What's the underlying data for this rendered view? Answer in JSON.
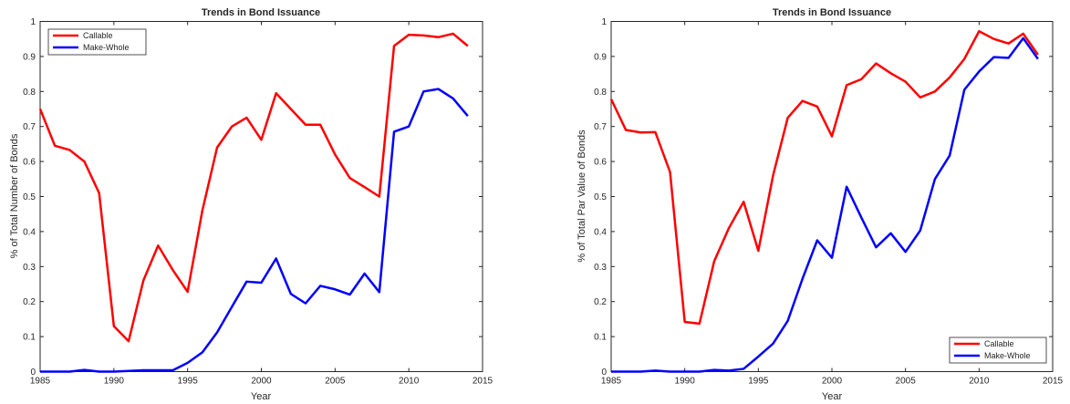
{
  "figure": {
    "background": "#ffffff"
  },
  "chart_data": [
    {
      "type": "line",
      "title": "Trends in Bond Issuance",
      "xlabel": "Year",
      "ylabel": "% of Total Number of Bonds",
      "xlim": [
        1985,
        2015
      ],
      "ylim": [
        0,
        1
      ],
      "xticks": [
        1985,
        1990,
        1995,
        2000,
        2005,
        2010,
        2015
      ],
      "yticks": [
        0,
        0.1,
        0.2,
        0.3,
        0.4,
        0.5,
        0.6,
        0.7,
        0.8,
        0.9,
        1
      ],
      "xtick_labels": [
        "1985",
        "1990",
        "1995",
        "2000",
        "2005",
        "2010",
        "2015"
      ],
      "ytick_labels": [
        "0",
        "0.1",
        "0.2",
        "0.3",
        "0.4",
        "0.5",
        "0.6",
        "0.7",
        "0.8",
        "0.9",
        "1"
      ],
      "grid": false,
      "legend_position": "top-left",
      "x": [
        1985,
        1986,
        1987,
        1988,
        1989,
        1990,
        1991,
        1992,
        1993,
        1994,
        1995,
        1996,
        1997,
        1998,
        1999,
        2000,
        2001,
        2002,
        2003,
        2004,
        2005,
        2006,
        2007,
        2008,
        2009,
        2010,
        2011,
        2012,
        2013,
        2014
      ],
      "series": [
        {
          "name": "Callable",
          "color": "#ff0000",
          "values": [
            0.75,
            0.645,
            0.633,
            0.6,
            0.51,
            0.13,
            0.087,
            0.26,
            0.36,
            0.29,
            0.228,
            0.46,
            0.64,
            0.7,
            0.725,
            0.662,
            0.795,
            0.75,
            0.705,
            0.705,
            0.62,
            0.553,
            0.527,
            0.5,
            0.93,
            0.962,
            0.96,
            0.955,
            0.965,
            0.93
          ]
        },
        {
          "name": "Make-Whole",
          "color": "#0000ff",
          "values": [
            0.0,
            0.0,
            0.0,
            0.005,
            0.0,
            0.0,
            0.002,
            0.004,
            0.004,
            0.004,
            0.025,
            0.055,
            0.112,
            0.185,
            0.257,
            0.254,
            0.323,
            0.222,
            0.195,
            0.245,
            0.235,
            0.22,
            0.28,
            0.227,
            0.685,
            0.7,
            0.8,
            0.807,
            0.78,
            0.73
          ]
        }
      ]
    },
    {
      "type": "line",
      "title": "Trends in Bond Issuance",
      "xlabel": "Year",
      "ylabel": "% of Total Par Value of Bonds",
      "xlim": [
        1985,
        2015
      ],
      "ylim": [
        0,
        1
      ],
      "xticks": [
        1985,
        1990,
        1995,
        2000,
        2005,
        2010,
        2015
      ],
      "yticks": [
        0,
        0.1,
        0.2,
        0.3,
        0.4,
        0.5,
        0.6,
        0.7,
        0.8,
        0.9,
        1
      ],
      "xtick_labels": [
        "1985",
        "1990",
        "1995",
        "2000",
        "2005",
        "2010",
        "2015"
      ],
      "ytick_labels": [
        "0",
        "0.1",
        "0.2",
        "0.3",
        "0.4",
        "0.5",
        "0.6",
        "0.7",
        "0.8",
        "0.9",
        "1"
      ],
      "grid": false,
      "legend_position": "bottom-right",
      "x": [
        1985,
        1986,
        1987,
        1988,
        1989,
        1990,
        1991,
        1992,
        1993,
        1994,
        1995,
        1996,
        1997,
        1998,
        1999,
        2000,
        2001,
        2002,
        2003,
        2004,
        2005,
        2006,
        2007,
        2008,
        2009,
        2010,
        2011,
        2012,
        2013,
        2014
      ],
      "series": [
        {
          "name": "Callable",
          "color": "#ff0000",
          "values": [
            0.778,
            0.69,
            0.683,
            0.684,
            0.57,
            0.142,
            0.137,
            0.315,
            0.41,
            0.485,
            0.345,
            0.56,
            0.725,
            0.773,
            0.757,
            0.672,
            0.818,
            0.835,
            0.88,
            0.852,
            0.828,
            0.783,
            0.8,
            0.84,
            0.893,
            0.972,
            0.95,
            0.937,
            0.965,
            0.905
          ]
        },
        {
          "name": "Make-Whole",
          "color": "#0000ff",
          "values": [
            0.0,
            0.0,
            0.0,
            0.003,
            0.0,
            0.0,
            0.0,
            0.005,
            0.003,
            0.008,
            0.043,
            0.08,
            0.145,
            0.265,
            0.375,
            0.325,
            0.528,
            0.44,
            0.355,
            0.395,
            0.342,
            0.403,
            0.55,
            0.617,
            0.805,
            0.857,
            0.898,
            0.896,
            0.952,
            0.893
          ]
        }
      ]
    }
  ]
}
